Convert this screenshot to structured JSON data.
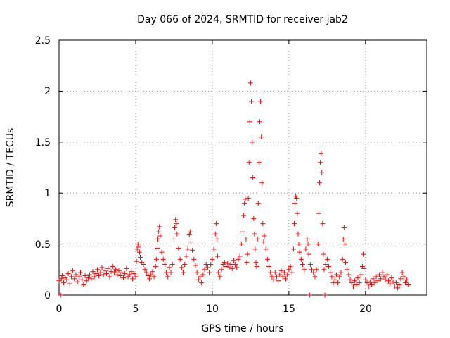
{
  "chart_data": {
    "type": "scatter",
    "title": "Day 066 of 2024, SRMTID for receiver jab2",
    "xlabel": "GPS time / hours",
    "ylabel": "SRMTID / TECUs",
    "xlim": [
      0,
      24
    ],
    "ylim": [
      0,
      2.5
    ],
    "x_ticks": [
      0,
      5,
      10,
      15,
      20
    ],
    "x_tick_labels": [
      "0",
      "5",
      "10",
      "15",
      "20"
    ],
    "y_ticks": [
      0,
      0.5,
      1,
      1.5,
      2,
      2.5
    ],
    "y_tick_labels": [
      "0",
      "0.5",
      "1",
      "1.5",
      "2",
      "2.5"
    ],
    "grid": true,
    "marker": "+",
    "series": [
      {
        "name": "SRMTID",
        "color": "#ff0000",
        "points": [
          [
            0.0,
            0.14
          ],
          [
            0.1,
            0.0
          ],
          [
            0.15,
            0.16
          ],
          [
            0.2,
            0.19
          ],
          [
            0.3,
            0.12
          ],
          [
            0.4,
            0.17
          ],
          [
            0.5,
            0.15
          ],
          [
            0.6,
            0.21
          ],
          [
            0.7,
            0.11
          ],
          [
            0.8,
            0.18
          ],
          [
            0.9,
            0.24
          ],
          [
            1.0,
            0.16
          ],
          [
            1.1,
            0.2
          ],
          [
            1.2,
            0.13
          ],
          [
            1.3,
            0.18
          ],
          [
            1.4,
            0.22
          ],
          [
            1.5,
            0.15
          ],
          [
            1.6,
            0.1
          ],
          [
            1.7,
            0.19
          ],
          [
            1.8,
            0.14
          ],
          [
            1.9,
            0.17
          ],
          [
            2.0,
            0.2
          ],
          [
            2.1,
            0.16
          ],
          [
            2.2,
            0.23
          ],
          [
            2.3,
            0.18
          ],
          [
            2.4,
            0.21
          ],
          [
            2.5,
            0.25
          ],
          [
            2.6,
            0.19
          ],
          [
            2.7,
            0.22
          ],
          [
            2.8,
            0.27
          ],
          [
            2.9,
            0.2
          ],
          [
            3.0,
            0.24
          ],
          [
            3.1,
            0.21
          ],
          [
            3.2,
            0.26
          ],
          [
            3.3,
            0.18
          ],
          [
            3.4,
            0.23
          ],
          [
            3.5,
            0.28
          ],
          [
            3.6,
            0.22
          ],
          [
            3.7,
            0.25
          ],
          [
            3.8,
            0.2
          ],
          [
            3.9,
            0.24
          ],
          [
            4.0,
            0.19
          ],
          [
            4.1,
            0.22
          ],
          [
            4.2,
            0.17
          ],
          [
            4.3,
            0.21
          ],
          [
            4.4,
            0.26
          ],
          [
            4.5,
            0.18
          ],
          [
            4.6,
            0.2
          ],
          [
            4.7,
            0.23
          ],
          [
            4.8,
            0.16
          ],
          [
            4.9,
            0.21
          ],
          [
            5.0,
            0.18
          ],
          [
            5.05,
            0.33
          ],
          [
            5.1,
            0.45
          ],
          [
            5.15,
            0.5
          ],
          [
            5.2,
            0.47
          ],
          [
            5.25,
            0.42
          ],
          [
            5.3,
            0.37
          ],
          [
            5.4,
            0.32
          ],
          [
            5.5,
            0.3
          ],
          [
            5.6,
            0.25
          ],
          [
            5.7,
            0.22
          ],
          [
            5.8,
            0.19
          ],
          [
            5.9,
            0.16
          ],
          [
            6.0,
            0.2
          ],
          [
            6.1,
            0.23
          ],
          [
            6.2,
            0.18
          ],
          [
            6.3,
            0.28
          ],
          [
            6.35,
            0.35
          ],
          [
            6.4,
            0.46
          ],
          [
            6.45,
            0.55
          ],
          [
            6.5,
            0.62
          ],
          [
            6.55,
            0.67
          ],
          [
            6.6,
            0.58
          ],
          [
            6.7,
            0.42
          ],
          [
            6.8,
            0.35
          ],
          [
            6.9,
            0.3
          ],
          [
            7.0,
            0.22
          ],
          [
            7.1,
            0.18
          ],
          [
            7.2,
            0.27
          ],
          [
            7.3,
            0.22
          ],
          [
            7.4,
            0.3
          ],
          [
            7.5,
            0.55
          ],
          [
            7.55,
            0.66
          ],
          [
            7.6,
            0.74
          ],
          [
            7.65,
            0.7
          ],
          [
            7.7,
            0.6
          ],
          [
            7.8,
            0.46
          ],
          [
            7.9,
            0.35
          ],
          [
            8.0,
            0.27
          ],
          [
            8.1,
            0.22
          ],
          [
            8.2,
            0.3
          ],
          [
            8.3,
            0.38
          ],
          [
            8.4,
            0.45
          ],
          [
            8.5,
            0.59
          ],
          [
            8.55,
            0.62
          ],
          [
            8.6,
            0.52
          ],
          [
            8.7,
            0.44
          ],
          [
            8.8,
            0.35
          ],
          [
            8.9,
            0.29
          ],
          [
            9.0,
            0.22
          ],
          [
            9.1,
            0.15
          ],
          [
            9.2,
            0.18
          ],
          [
            9.3,
            0.12
          ],
          [
            9.4,
            0.2
          ],
          [
            9.5,
            0.25
          ],
          [
            9.6,
            0.3
          ],
          [
            9.7,
            0.27
          ],
          [
            9.8,
            0.22
          ],
          [
            9.9,
            0.3
          ],
          [
            10.0,
            0.35
          ],
          [
            10.1,
            0.45
          ],
          [
            10.2,
            0.6
          ],
          [
            10.25,
            0.7
          ],
          [
            10.3,
            0.55
          ],
          [
            10.35,
            0.38
          ],
          [
            10.4,
            0.22
          ],
          [
            10.5,
            0.18
          ],
          [
            10.6,
            0.25
          ],
          [
            10.7,
            0.3
          ],
          [
            10.8,
            0.32
          ],
          [
            10.9,
            0.28
          ],
          [
            11.0,
            0.31
          ],
          [
            11.1,
            0.27
          ],
          [
            11.2,
            0.3
          ],
          [
            11.3,
            0.26
          ],
          [
            11.4,
            0.34
          ],
          [
            11.5,
            0.3
          ],
          [
            11.6,
            0.27
          ],
          [
            11.7,
            0.35
          ],
          [
            11.8,
            0.38
          ],
          [
            11.9,
            0.5
          ],
          [
            12.0,
            0.62
          ],
          [
            12.05,
            0.78
          ],
          [
            12.1,
            0.9
          ],
          [
            12.15,
            0.94
          ],
          [
            12.2,
            0.55
          ],
          [
            12.25,
            0.32
          ],
          [
            12.3,
            0.4
          ],
          [
            12.35,
            0.95
          ],
          [
            12.4,
            1.3
          ],
          [
            12.45,
            1.7
          ],
          [
            12.5,
            2.08
          ],
          [
            12.55,
            1.9
          ],
          [
            12.6,
            1.5
          ],
          [
            12.65,
            1.15
          ],
          [
            12.7,
            0.75
          ],
          [
            12.75,
            0.6
          ],
          [
            12.8,
            0.45
          ],
          [
            12.85,
            0.32
          ],
          [
            12.9,
            0.28
          ],
          [
            12.95,
            0.55
          ],
          [
            13.0,
            0.9
          ],
          [
            13.05,
            1.3
          ],
          [
            13.1,
            1.7
          ],
          [
            13.15,
            1.9
          ],
          [
            13.2,
            1.55
          ],
          [
            13.25,
            1.1
          ],
          [
            13.3,
            0.7
          ],
          [
            13.35,
            0.52
          ],
          [
            13.4,
            0.58
          ],
          [
            13.5,
            0.45
          ],
          [
            13.6,
            0.35
          ],
          [
            13.7,
            0.28
          ],
          [
            13.8,
            0.22
          ],
          [
            13.9,
            0.18
          ],
          [
            14.0,
            0.15
          ],
          [
            14.1,
            0.22
          ],
          [
            14.2,
            0.18
          ],
          [
            14.3,
            0.14
          ],
          [
            14.4,
            0.2
          ],
          [
            14.5,
            0.24
          ],
          [
            14.6,
            0.18
          ],
          [
            14.7,
            0.22
          ],
          [
            14.8,
            0.16
          ],
          [
            14.9,
            0.2
          ],
          [
            15.0,
            0.25
          ],
          [
            15.1,
            0.28
          ],
          [
            15.2,
            0.22
          ],
          [
            15.3,
            0.45
          ],
          [
            15.35,
            0.7
          ],
          [
            15.4,
            0.9
          ],
          [
            15.45,
            0.97
          ],
          [
            15.5,
            0.95
          ],
          [
            15.55,
            0.8
          ],
          [
            15.6,
            0.6
          ],
          [
            15.65,
            0.5
          ],
          [
            15.7,
            0.42
          ],
          [
            15.8,
            0.35
          ],
          [
            15.9,
            0.3
          ],
          [
            16.0,
            0.25
          ],
          [
            16.1,
            0.45
          ],
          [
            16.2,
            0.55
          ],
          [
            16.25,
            0.5
          ],
          [
            16.3,
            0.4
          ],
          [
            16.35,
            0.0
          ],
          [
            16.4,
            0.3
          ],
          [
            16.5,
            0.25
          ],
          [
            16.6,
            0.22
          ],
          [
            16.7,
            0.18
          ],
          [
            16.8,
            0.25
          ],
          [
            16.9,
            0.5
          ],
          [
            16.95,
            0.8
          ],
          [
            17.0,
            1.1
          ],
          [
            17.05,
            1.3
          ],
          [
            17.1,
            1.39
          ],
          [
            17.15,
            1.2
          ],
          [
            17.2,
            0.7
          ],
          [
            17.25,
            0.4
          ],
          [
            17.3,
            0.25
          ],
          [
            17.35,
            0.0
          ],
          [
            17.4,
            0.3
          ],
          [
            17.5,
            0.35
          ],
          [
            17.6,
            0.28
          ],
          [
            17.7,
            0.22
          ],
          [
            17.8,
            0.18
          ],
          [
            17.9,
            0.12
          ],
          [
            18.0,
            0.15
          ],
          [
            18.1,
            0.2
          ],
          [
            18.2,
            0.12
          ],
          [
            18.3,
            0.18
          ],
          [
            18.4,
            0.22
          ],
          [
            18.5,
            0.35
          ],
          [
            18.55,
            0.55
          ],
          [
            18.6,
            0.66
          ],
          [
            18.65,
            0.5
          ],
          [
            18.7,
            0.32
          ],
          [
            18.8,
            0.25
          ],
          [
            18.9,
            0.2
          ],
          [
            19.0,
            0.15
          ],
          [
            19.1,
            0.12
          ],
          [
            19.2,
            0.08
          ],
          [
            19.3,
            0.14
          ],
          [
            19.4,
            0.1
          ],
          [
            19.5,
            0.17
          ],
          [
            19.6,
            0.12
          ],
          [
            19.7,
            0.2
          ],
          [
            19.8,
            0.28
          ],
          [
            19.85,
            0.4
          ],
          [
            19.9,
            0.26
          ],
          [
            20.0,
            0.15
          ],
          [
            20.1,
            0.12
          ],
          [
            20.2,
            0.08
          ],
          [
            20.3,
            0.13
          ],
          [
            20.4,
            0.1
          ],
          [
            20.5,
            0.16
          ],
          [
            20.6,
            0.12
          ],
          [
            20.7,
            0.18
          ],
          [
            20.8,
            0.14
          ],
          [
            20.9,
            0.2
          ],
          [
            21.0,
            0.16
          ],
          [
            21.1,
            0.22
          ],
          [
            21.2,
            0.18
          ],
          [
            21.3,
            0.15
          ],
          [
            21.4,
            0.2
          ],
          [
            21.5,
            0.14
          ],
          [
            21.6,
            0.11
          ],
          [
            21.7,
            0.17
          ],
          [
            21.8,
            0.13
          ],
          [
            21.9,
            0.08
          ],
          [
            22.0,
            0.12
          ],
          [
            22.1,
            0.07
          ],
          [
            22.2,
            0.1
          ],
          [
            22.3,
            0.16
          ],
          [
            22.4,
            0.22
          ],
          [
            22.5,
            0.18
          ],
          [
            22.6,
            0.12
          ],
          [
            22.7,
            0.15
          ],
          [
            22.8,
            0.1
          ]
        ]
      }
    ]
  }
}
